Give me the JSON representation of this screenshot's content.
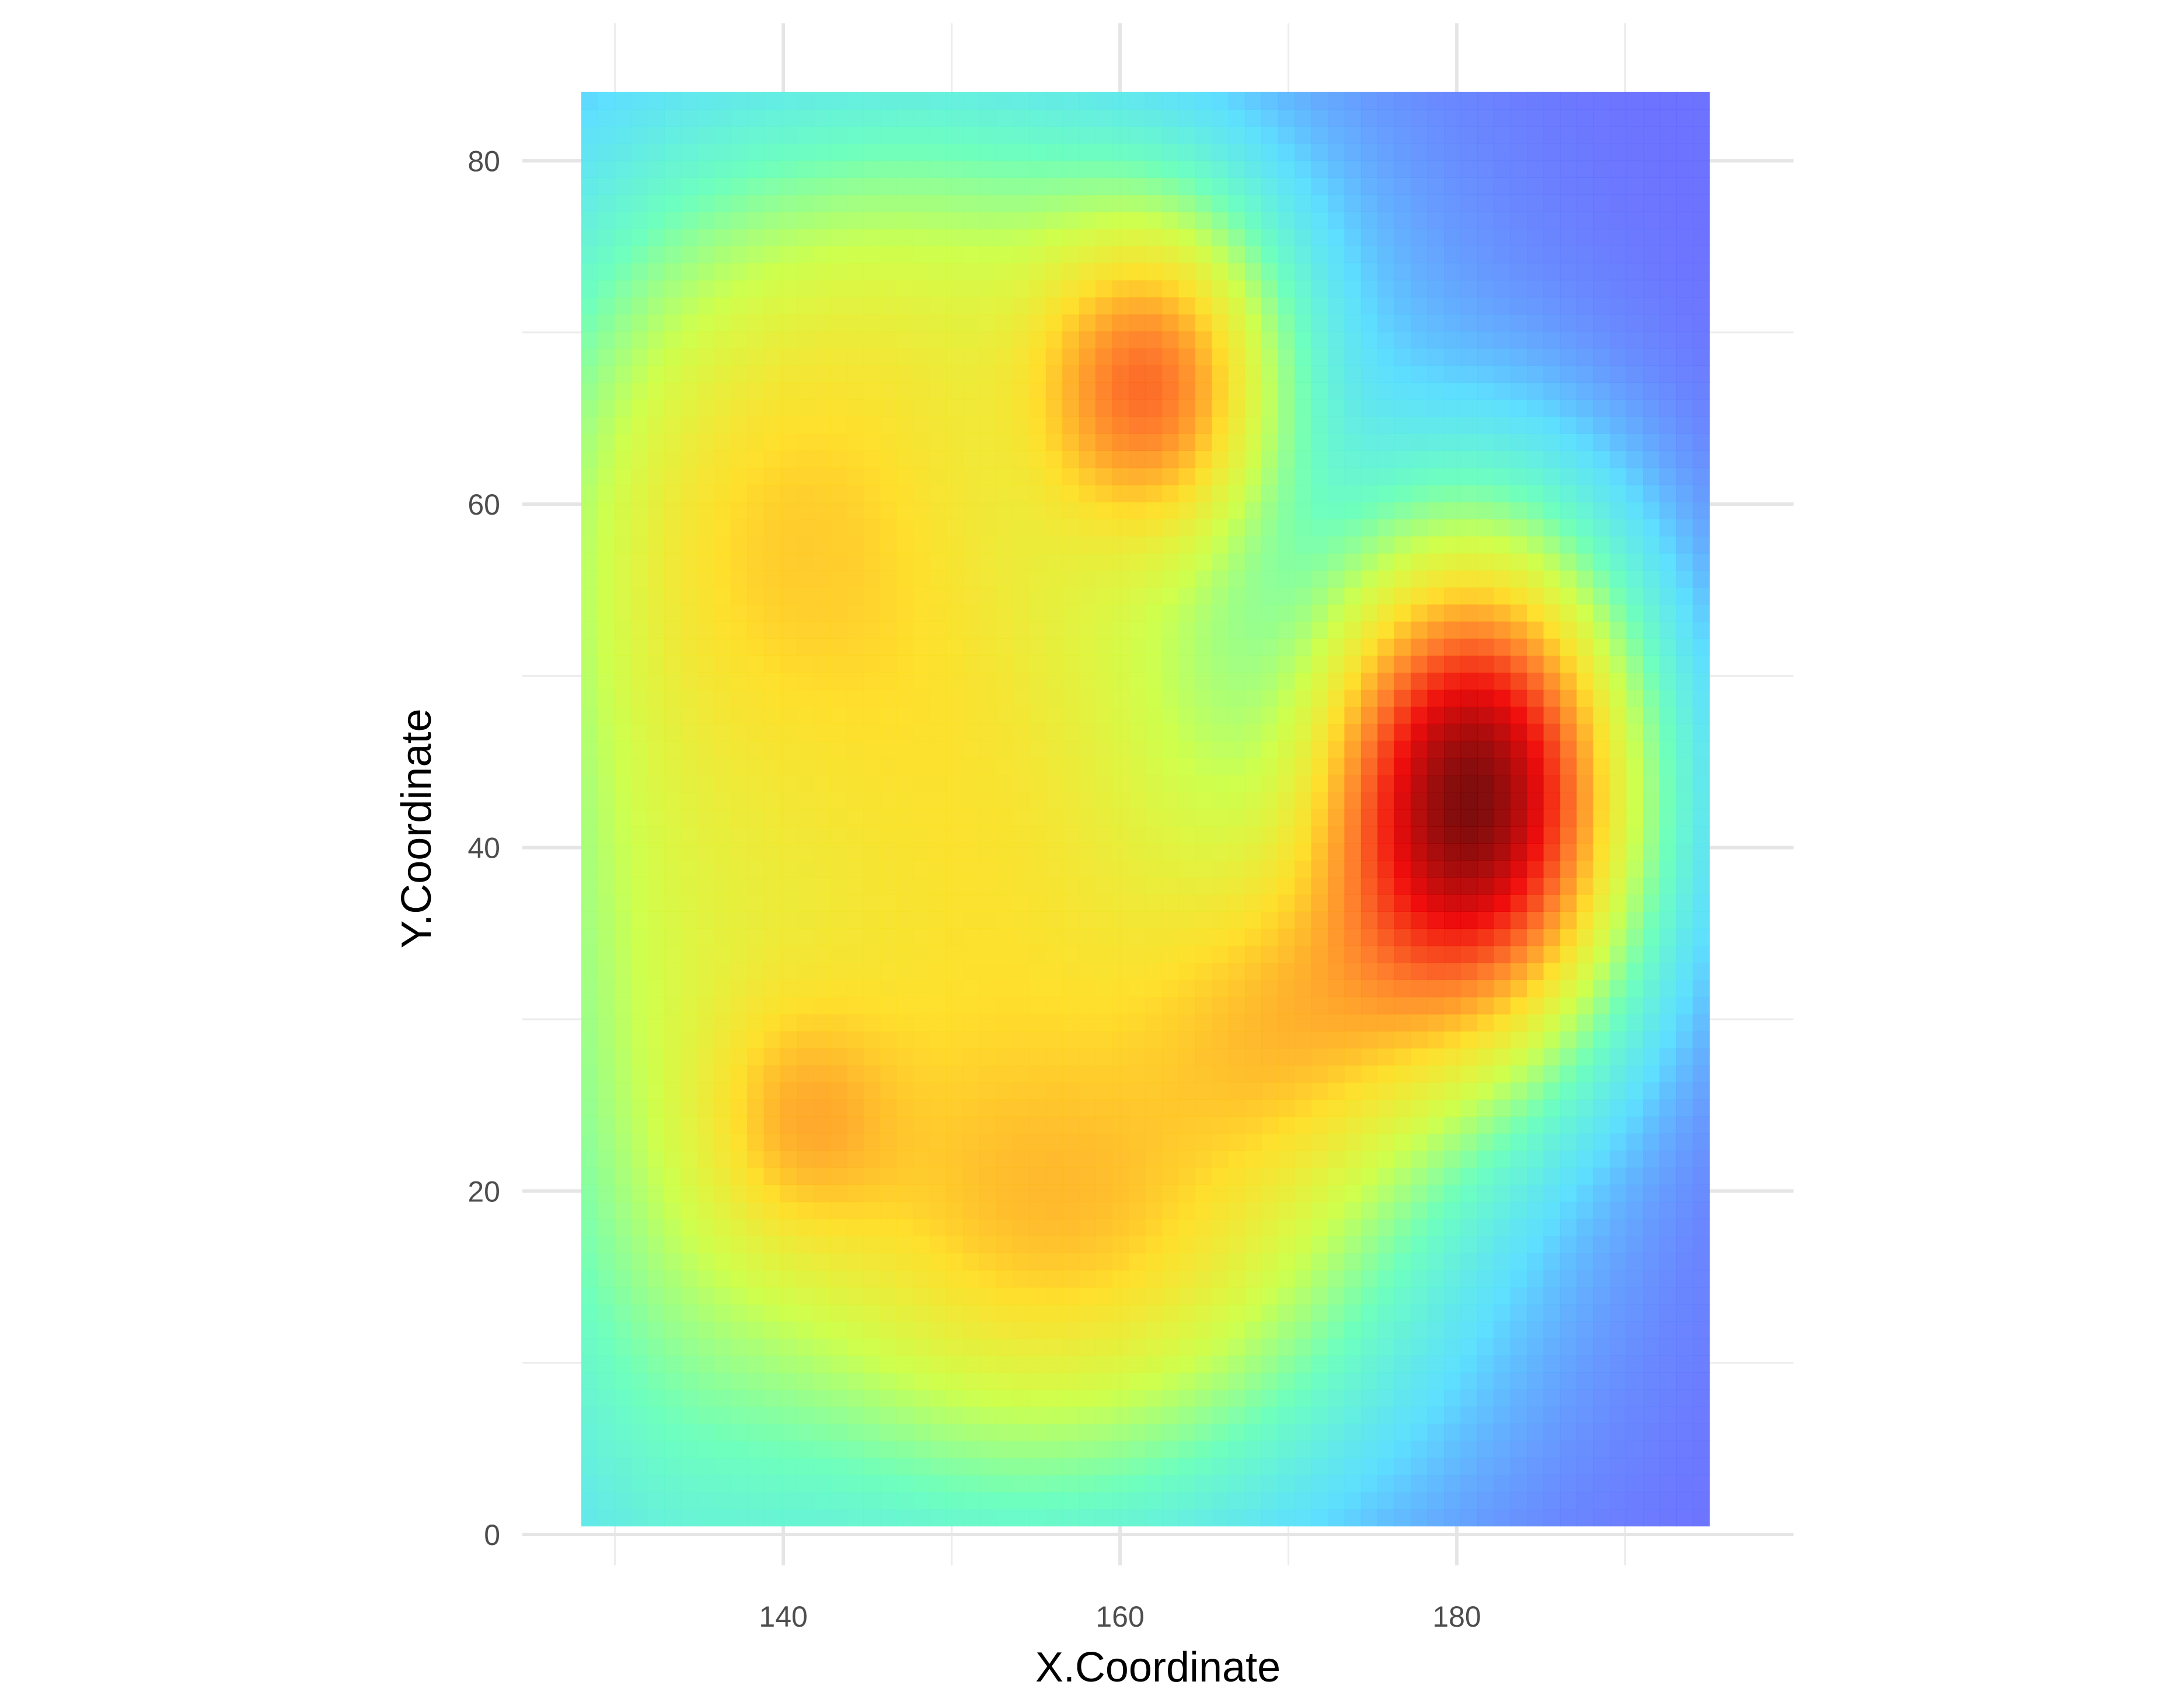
{
  "chart_data": {
    "type": "heatmap",
    "xlabel": "X.Coordinate",
    "ylabel": "Y.Coordinate",
    "xlim": [
      124.5,
      200.0
    ],
    "ylim": [
      -1.8,
      88.0
    ],
    "data_extent": {
      "x": [
        128,
        195
      ],
      "y": [
        0.5,
        84
      ]
    },
    "x_ticks": [
      140,
      160,
      180
    ],
    "x_minor_ticks": [
      130,
      150,
      170,
      190
    ],
    "y_ticks": [
      0,
      20,
      40,
      60,
      80
    ],
    "y_minor_ticks": [
      10,
      30,
      50,
      70
    ],
    "grid": true,
    "legend": "none",
    "colormap": [
      "#6666ff",
      "#55ddff",
      "#66ffbb",
      "#ccff44",
      "#ffdd22",
      "#ff7722",
      "#ee0000",
      "#770000"
    ],
    "background_color": "#ffffff",
    "density_peaks": [
      {
        "x": 181,
        "y": 43,
        "level": "highest"
      },
      {
        "x": 162,
        "y": 67,
        "level": "high"
      },
      {
        "x": 141,
        "y": 24,
        "level": "moderate"
      }
    ]
  }
}
